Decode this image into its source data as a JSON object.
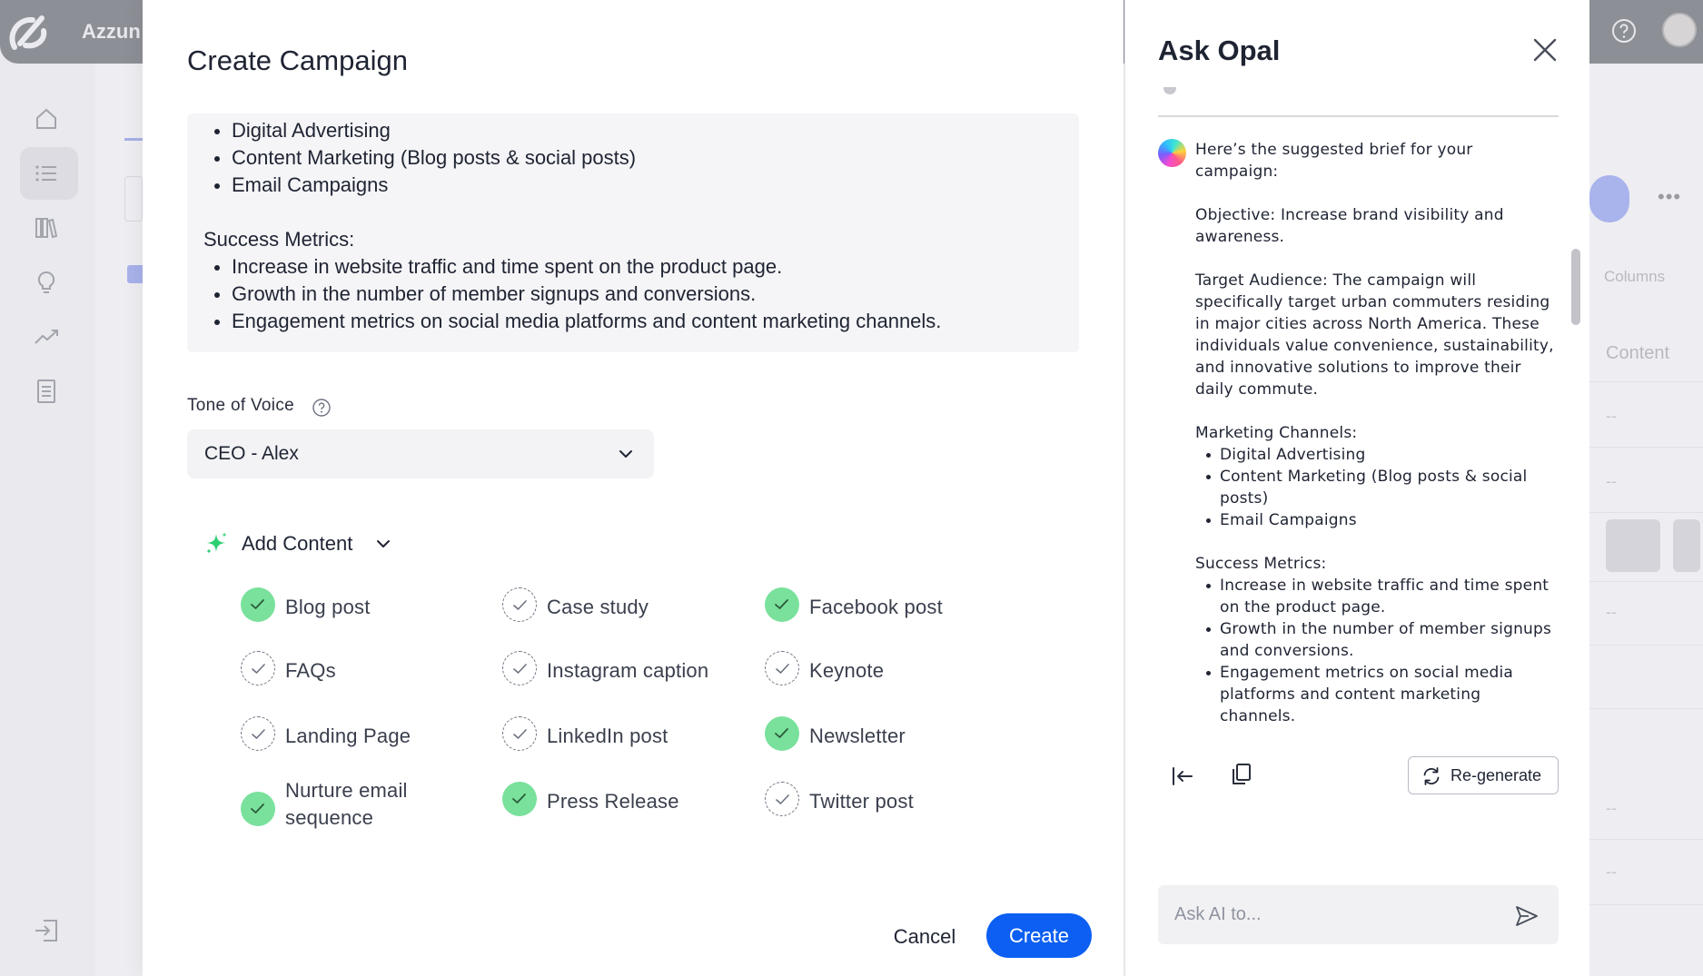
{
  "app": {
    "brand": "Azzun"
  },
  "background": {
    "columns_label": "Columns",
    "content_label": "Content",
    "dash": "--"
  },
  "modal": {
    "title": "Create Campaign",
    "brief": {
      "channels": [
        "Digital Advertising",
        "Content Marketing (Blog posts & social posts)",
        "Email Campaigns"
      ],
      "success_heading": "Success Metrics:",
      "success_metrics": [
        "Increase in website traffic and time spent on the product page.",
        "Growth in the number of member signups and conversions.",
        "Engagement metrics on social media platforms and content marketing channels."
      ]
    },
    "tone": {
      "label": "Tone of Voice",
      "selected": "CEO - Alex"
    },
    "add_content_label": "Add Content",
    "content_types": [
      {
        "label": "Blog post",
        "selected": true
      },
      {
        "label": "Case study",
        "selected": false
      },
      {
        "label": "Facebook post",
        "selected": true
      },
      {
        "label": "FAQs",
        "selected": false
      },
      {
        "label": "Instagram caption",
        "selected": false
      },
      {
        "label": "Keynote",
        "selected": false
      },
      {
        "label": "Landing Page",
        "selected": false
      },
      {
        "label": "LinkedIn post",
        "selected": false
      },
      {
        "label": "Newsletter",
        "selected": true
      },
      {
        "label": "Nurture email sequence",
        "selected": true
      },
      {
        "label": "Press Release",
        "selected": true
      },
      {
        "label": "Twitter post",
        "selected": false
      }
    ],
    "cancel_label": "Cancel",
    "create_label": "Create"
  },
  "opal": {
    "title": "Ask Opal",
    "message": {
      "intro": "Here’s the suggested brief for your campaign:",
      "objective": "Objective: Increase brand visibility and awareness.",
      "audience": "Target Audience: The campaign will specifically target urban commuters residing in major cities across North America. These individuals value convenience, sustainability, and innovative solutions to improve their daily commute.",
      "channels_heading": "Marketing Channels:",
      "channels": [
        "Digital Advertising",
        "Content Marketing (Blog posts & social posts)",
        "Email Campaigns"
      ],
      "success_heading": "Success Metrics:",
      "success_metrics": [
        "Increase in website traffic and time spent on the product page.",
        "Growth in the number of member signups and conversions.",
        "Engagement metrics on social media platforms and content marketing channels."
      ]
    },
    "regenerate_label": "Re-generate",
    "input_placeholder": "Ask AI to..."
  },
  "colors": {
    "primary": "#0c5ff2",
    "selected_check": "#79e19b",
    "accent_spark": "#2ecf73"
  },
  "icons": [
    "logo-icon",
    "help-icon",
    "home-icon",
    "list-icon",
    "library-icon",
    "bulb-icon",
    "trend-icon",
    "doc-icon",
    "exit-icon",
    "sparkle-icon",
    "chevron-down-icon",
    "close-icon",
    "collapse-left-icon",
    "copy-icon",
    "refresh-icon",
    "send-icon"
  ]
}
